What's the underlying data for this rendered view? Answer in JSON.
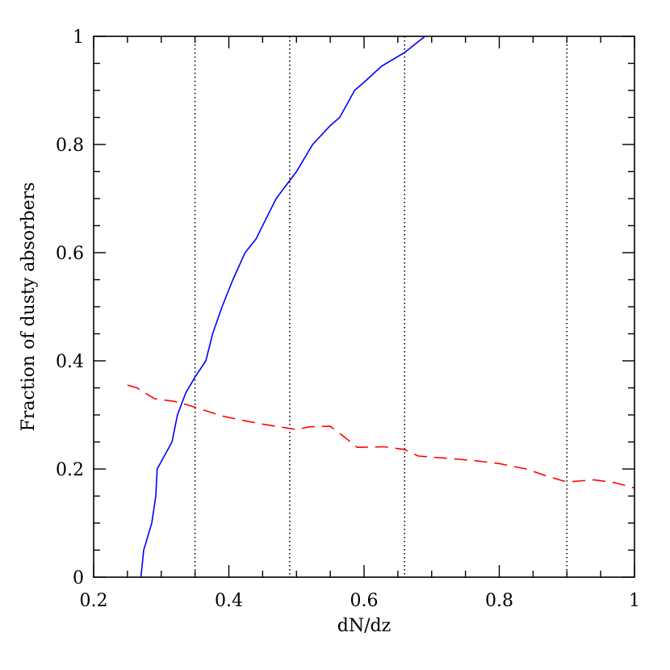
{
  "chart_data": {
    "type": "line",
    "xlabel": "dN/dz",
    "ylabel": "Fraction of dusty absorbers",
    "xlim": [
      0.2,
      1.0
    ],
    "ylim": [
      0.0,
      1.0
    ],
    "x_tick_labels": [
      "0.2",
      "0.4",
      "0.6",
      "0.8",
      "1"
    ],
    "y_tick_labels": [
      "0",
      "0.2",
      "0.4",
      "0.6",
      "0.8",
      "1"
    ],
    "grid": false,
    "reference_lines_x": [
      0.35,
      0.49,
      0.66,
      0.9
    ],
    "series": [
      {
        "style": "solid",
        "color": "#0000ff",
        "points": [
          [
            0.27,
            0.0
          ],
          [
            0.274,
            0.05
          ],
          [
            0.286,
            0.1
          ],
          [
            0.292,
            0.15
          ],
          [
            0.294,
            0.2
          ],
          [
            0.316,
            0.25
          ],
          [
            0.324,
            0.3
          ],
          [
            0.336,
            0.34
          ],
          [
            0.35,
            0.37
          ],
          [
            0.366,
            0.4
          ],
          [
            0.376,
            0.45
          ],
          [
            0.39,
            0.5
          ],
          [
            0.406,
            0.55
          ],
          [
            0.424,
            0.6
          ],
          [
            0.44,
            0.625
          ],
          [
            0.47,
            0.7
          ],
          [
            0.5,
            0.75
          ],
          [
            0.524,
            0.8
          ],
          [
            0.55,
            0.835
          ],
          [
            0.564,
            0.85
          ],
          [
            0.586,
            0.9
          ],
          [
            0.6,
            0.915
          ],
          [
            0.626,
            0.945
          ],
          [
            0.66,
            0.97
          ],
          [
            0.69,
            1.0
          ]
        ]
      },
      {
        "style": "dashed",
        "color": "#ff0000",
        "points": [
          [
            0.25,
            0.355
          ],
          [
            0.264,
            0.35
          ],
          [
            0.29,
            0.33
          ],
          [
            0.32,
            0.325
          ],
          [
            0.34,
            0.318
          ],
          [
            0.36,
            0.31
          ],
          [
            0.39,
            0.298
          ],
          [
            0.42,
            0.29
          ],
          [
            0.45,
            0.283
          ],
          [
            0.49,
            0.275
          ],
          [
            0.5,
            0.273
          ],
          [
            0.52,
            0.278
          ],
          [
            0.55,
            0.279
          ],
          [
            0.57,
            0.26
          ],
          [
            0.59,
            0.24
          ],
          [
            0.63,
            0.241
          ],
          [
            0.66,
            0.236
          ],
          [
            0.68,
            0.224
          ],
          [
            0.72,
            0.22
          ],
          [
            0.76,
            0.216
          ],
          [
            0.8,
            0.21
          ],
          [
            0.84,
            0.2
          ],
          [
            0.87,
            0.187
          ],
          [
            0.9,
            0.176
          ],
          [
            0.94,
            0.18
          ],
          [
            0.97,
            0.175
          ],
          [
            1.0,
            0.165
          ]
        ]
      }
    ]
  }
}
